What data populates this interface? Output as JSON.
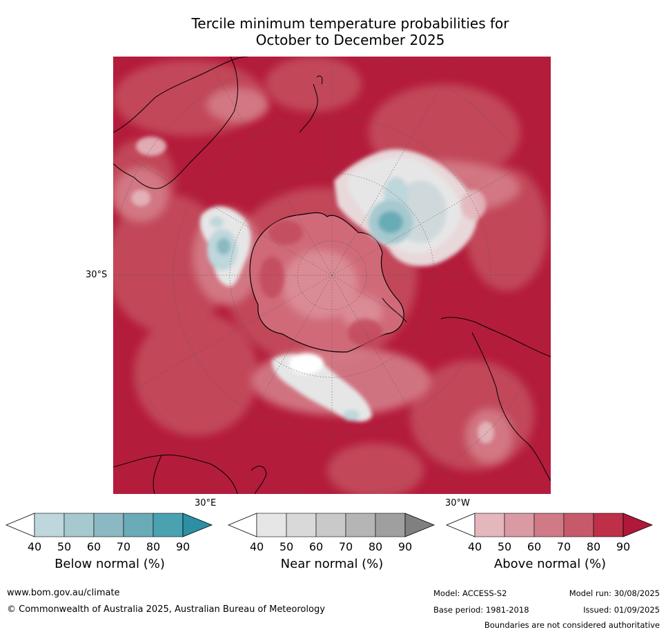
{
  "title": {
    "line1": "Tercile minimum temperature probabilities for",
    "line2": "October to December 2025"
  },
  "map": {
    "latitude_label": "30°S",
    "meridian_labels": {
      "east": "30°E",
      "west": "30°W"
    }
  },
  "colorbars": [
    {
      "label": "Below normal (%)",
      "ticks": [
        "40",
        "50",
        "60",
        "70",
        "80",
        "90"
      ],
      "colors": [
        "#ffffff",
        "#bdd7dc",
        "#a6c9cf",
        "#8bb8c3",
        "#6aabb8",
        "#4aa2b1",
        "#2c8fa3"
      ]
    },
    {
      "label": "Near normal (%)",
      "ticks": [
        "40",
        "50",
        "60",
        "70",
        "80",
        "90"
      ],
      "colors": [
        "#ffffff",
        "#e6e6e6",
        "#d9d9d9",
        "#c9c9c9",
        "#b5b5b5",
        "#9f9f9f",
        "#808080"
      ]
    },
    {
      "label": "Above normal (%)",
      "ticks": [
        "40",
        "50",
        "60",
        "70",
        "80",
        "90"
      ],
      "colors": [
        "#ffffff",
        "#e4b7bd",
        "#d99aa3",
        "#cf7a86",
        "#c75a6a",
        "#bd3048",
        "#b0183a"
      ]
    }
  ],
  "footer": {
    "website": "www.bom.gov.au/climate",
    "copyright": "© Commonwealth of Australia 2025, Australian Bureau of Meteorology",
    "model": "Model: ACCESS-S2",
    "model_run": "Model run: 30/08/2025",
    "base_period": "Base period: 1981-2018",
    "issued": "Issued: 01/09/2025",
    "disclaimer": "Boundaries are not considered authoritative"
  }
}
